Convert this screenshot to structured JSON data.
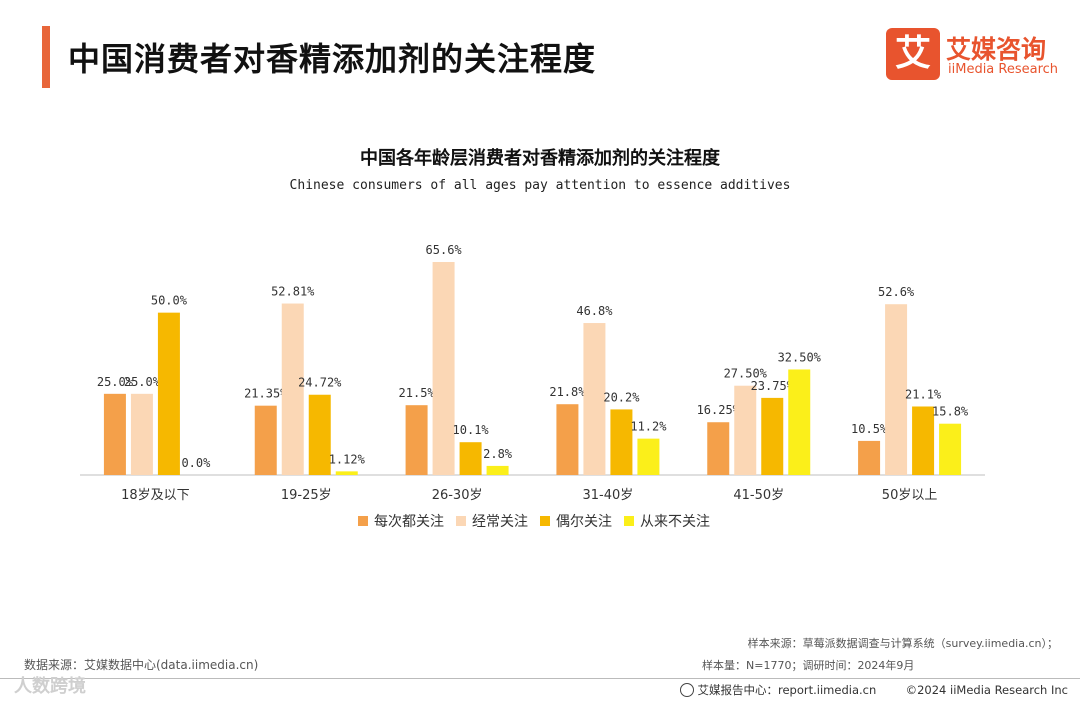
{
  "page": {
    "title": "中国消费者对香精添加剂的关注程度",
    "logo_char": "艾",
    "logo_cn": "艾媒咨询",
    "logo_en": "iiMedia Research"
  },
  "chart_data": {
    "type": "bar",
    "title": "中国各年龄层消费者对香精添加剂的关注程度",
    "subtitle": "Chinese consumers of all ages pay attention to essence additives",
    "categories": [
      "18岁及以下",
      "19-25岁",
      "26-30岁",
      "31-40岁",
      "41-50岁",
      "50岁以上"
    ],
    "series": [
      {
        "name": "每次都关注",
        "color": "#f4a04a",
        "values": [
          25.0,
          21.35,
          21.5,
          21.8,
          16.25,
          10.5
        ],
        "labels": [
          "25.0%",
          "21.35%",
          "21.5%",
          "21.8%",
          "16.25%",
          "10.5%"
        ]
      },
      {
        "name": "经常关注",
        "color": "#fbd7b5",
        "values": [
          25.0,
          52.81,
          65.6,
          46.8,
          27.5,
          52.6
        ],
        "labels": [
          "25.0%",
          "52.81%",
          "65.6%",
          "46.8%",
          "27.50%",
          "52.6%"
        ]
      },
      {
        "name": "偶尔关注",
        "color": "#f6b800",
        "values": [
          50.0,
          24.72,
          10.1,
          20.2,
          23.75,
          21.1
        ],
        "labels": [
          "50.0%",
          "24.72%",
          "10.1%",
          "20.2%",
          "23.75%",
          "21.1%"
        ]
      },
      {
        "name": "从来不关注",
        "color": "#fbef1a",
        "values": [
          0.0,
          1.12,
          2.8,
          11.2,
          32.5,
          15.8
        ],
        "labels": [
          "0.0%",
          "1.12%",
          "2.8%",
          "11.2%",
          "32.50%",
          "15.8%"
        ]
      }
    ],
    "ylim": [
      0,
      70
    ],
    "legend_position": "bottom"
  },
  "footer": {
    "data_source": "数据来源：艾媒数据中心(data.iimedia.cn)",
    "sample_source": "样本来源：草莓派数据调查与计算系统（survey.iimedia.cn）；",
    "sample_size": "样本量：N=1770；调研时间：2024年9月",
    "report_center": "艾媒报告中心：report.iimedia.cn",
    "copyright": "©2024  iiMedia Research  Inc",
    "watermark": "人数跨境"
  }
}
